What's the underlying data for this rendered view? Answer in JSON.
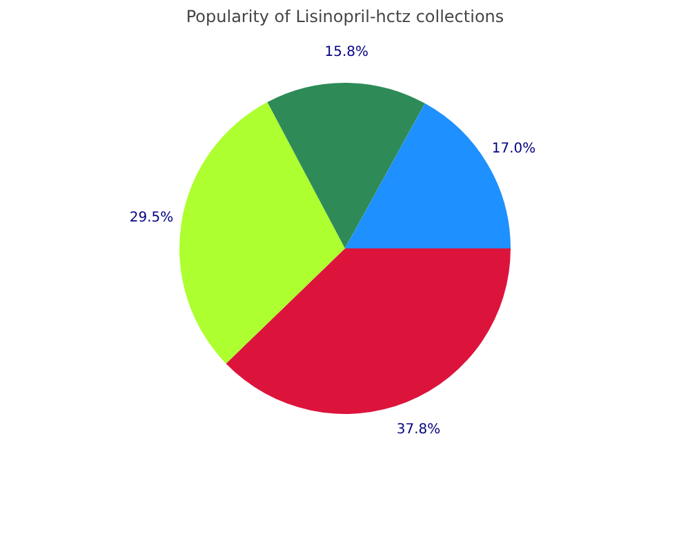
{
  "chart_data": {
    "type": "pie",
    "title": "Popularity of Lisinopril-hctz collections",
    "categories": [
      null,
      null,
      null,
      null
    ],
    "values": [
      37.8,
      29.5,
      15.8,
      17.0
    ],
    "colors": [
      "#dc143c",
      "#adff2f",
      "#2e8b57",
      "#1e90ff"
    ],
    "value_labels": [
      "37.8%",
      "29.5%",
      "15.8%",
      "17.0%"
    ],
    "legend": false
  }
}
